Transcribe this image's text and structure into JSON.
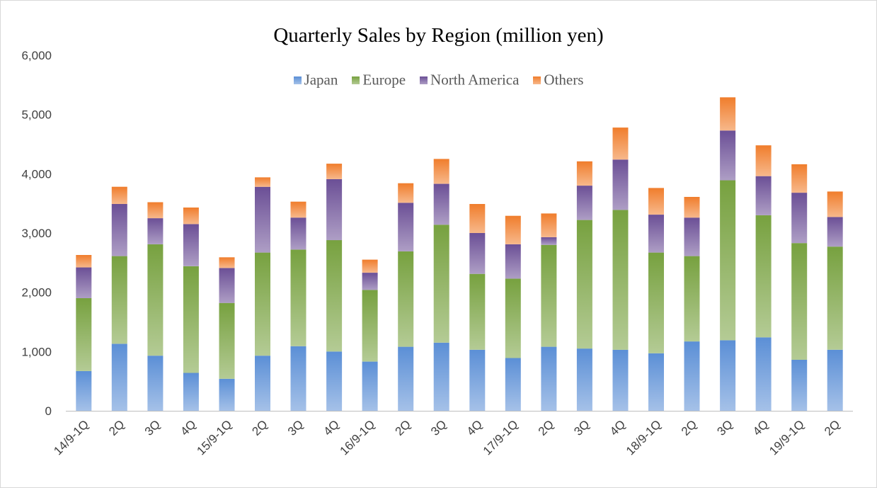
{
  "chart_data": {
    "type": "bar",
    "stacked": true,
    "title": "Quarterly Sales by Region (million yen)",
    "xlabel": "",
    "ylabel": "",
    "ylim": [
      0,
      6000
    ],
    "yticks": [
      0,
      1000,
      2000,
      3000,
      4000,
      5000,
      6000
    ],
    "ytick_labels": [
      "0",
      "1,000",
      "2,000",
      "3,000",
      "4,000",
      "5,000",
      "6,000"
    ],
    "grid": false,
    "legend_position": "top-center",
    "categories": [
      "14/9-1Q",
      "2Q",
      "3Q",
      "4Q",
      "15/9-1Q",
      "2Q",
      "3Q",
      "4Q",
      "16/9-1Q",
      "2Q",
      "3Q",
      "4Q",
      "17/9-1Q",
      "2Q",
      "3Q",
      "4Q",
      "18/9-1Q",
      "2Q",
      "3Q",
      "4Q",
      "19/9-1Q",
      "2Q"
    ],
    "series": [
      {
        "name": "Japan",
        "color": "#5b8fd6",
        "values": [
          670,
          1130,
          930,
          640,
          540,
          930,
          1090,
          1000,
          830,
          1080,
          1150,
          1030,
          890,
          1080,
          1050,
          1030,
          970,
          1170,
          1190,
          1240,
          860,
          1030
        ]
      },
      {
        "name": "Europe",
        "color": "#77a13f",
        "values": [
          1230,
          1480,
          1880,
          1800,
          1280,
          1740,
          1630,
          1880,
          1210,
          1610,
          1990,
          1280,
          1340,
          1720,
          2170,
          2360,
          1700,
          1440,
          2700,
          2060,
          1970,
          1740
        ]
      },
      {
        "name": "North America",
        "color": "#6b4f96",
        "values": [
          520,
          880,
          440,
          710,
          590,
          1110,
          540,
          1030,
          290,
          820,
          690,
          690,
          580,
          130,
          580,
          850,
          640,
          650,
          840,
          660,
          850,
          500
        ]
      },
      {
        "name": "Others",
        "color": "#f07d2c",
        "values": [
          210,
          290,
          270,
          280,
          180,
          160,
          270,
          260,
          220,
          330,
          420,
          490,
          480,
          400,
          410,
          540,
          450,
          350,
          560,
          520,
          480,
          430
        ]
      }
    ]
  }
}
